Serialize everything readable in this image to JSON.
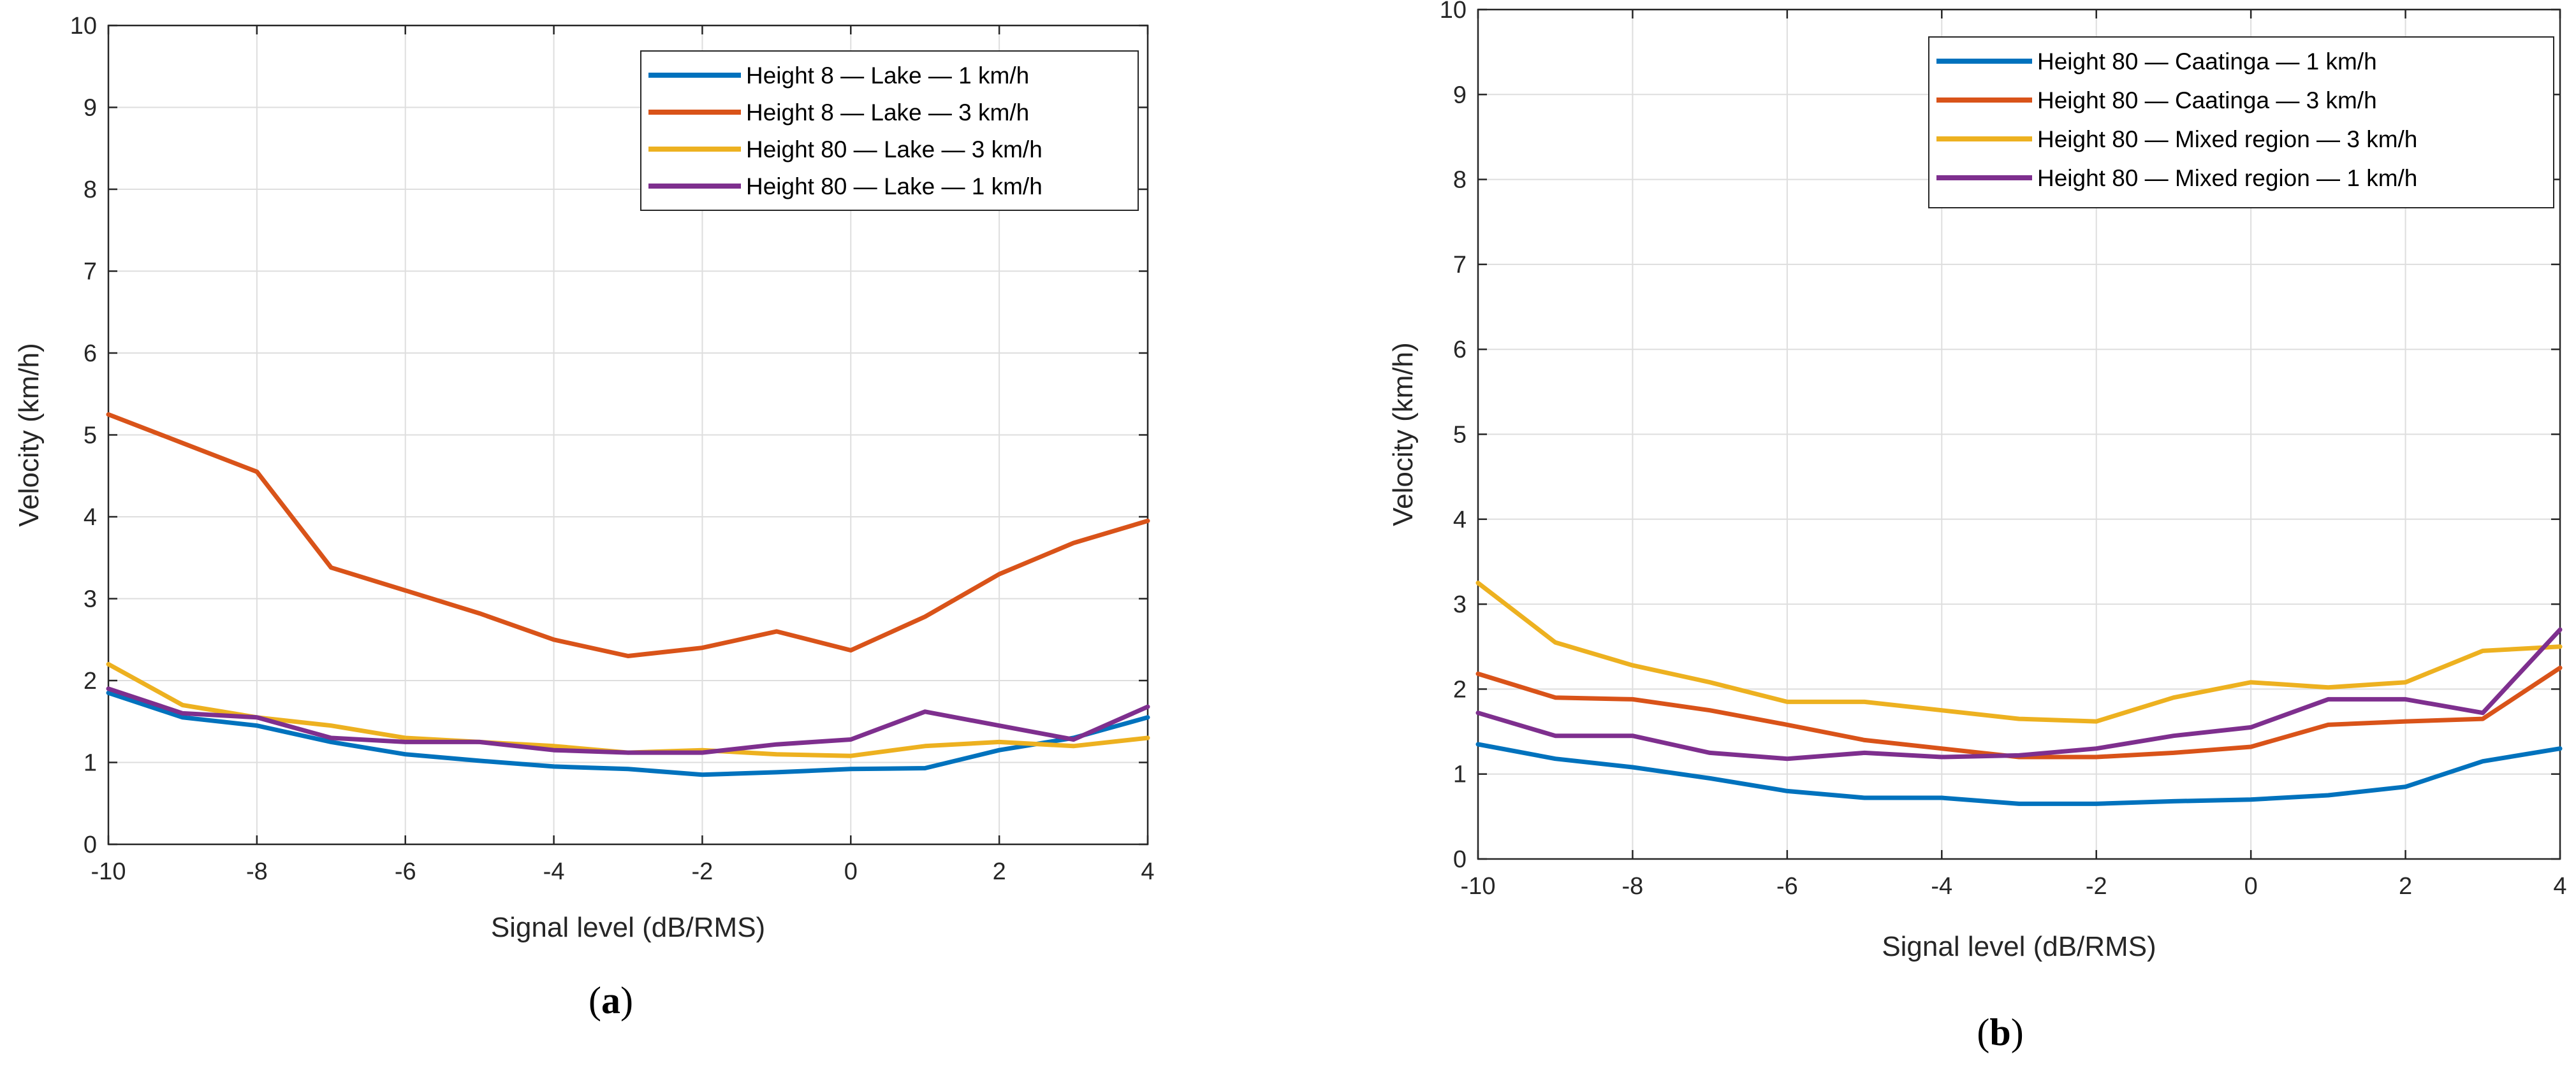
{
  "chart_data": [
    {
      "type": "line",
      "panel": "a",
      "xlabel": "Signal level (dB/RMS)",
      "ylabel": "Velocity (km/h)",
      "xlim": [
        -10,
        4
      ],
      "ylim": [
        0,
        10
      ],
      "xticks": [
        -10,
        -8,
        -6,
        -4,
        -2,
        0,
        2,
        4
      ],
      "yticks": [
        0,
        1,
        2,
        3,
        4,
        5,
        6,
        7,
        8,
        9,
        10
      ],
      "grid": true,
      "legend_position": "top-right",
      "x": [
        -10,
        -9,
        -8,
        -7,
        -6,
        -5,
        -4,
        -3,
        -2,
        -1,
        0,
        1,
        2,
        3,
        4
      ],
      "series": [
        {
          "name": "Height 8 — Lake — 1 km/h",
          "color": "#0072BD",
          "values": [
            1.85,
            1.55,
            1.45,
            1.25,
            1.1,
            1.02,
            0.95,
            0.92,
            0.85,
            0.88,
            0.92,
            0.93,
            1.15,
            1.3,
            1.55
          ]
        },
        {
          "name": "Height 8 — Lake — 3 km/h",
          "color": "#D95319",
          "values": [
            5.25,
            4.9,
            4.55,
            3.38,
            3.1,
            2.82,
            2.5,
            2.3,
            2.4,
            2.6,
            2.37,
            2.78,
            3.3,
            3.68,
            3.95
          ]
        },
        {
          "name": "Height 80 — Lake — 3 km/h",
          "color": "#EDB120",
          "values": [
            2.2,
            1.7,
            1.55,
            1.45,
            1.3,
            1.25,
            1.2,
            1.12,
            1.15,
            1.1,
            1.08,
            1.2,
            1.25,
            1.2,
            1.3
          ]
        },
        {
          "name": "Height 80 — Lake — 1 km/h",
          "color": "#7E2F8E",
          "values": [
            1.9,
            1.6,
            1.55,
            1.3,
            1.25,
            1.25,
            1.15,
            1.12,
            1.12,
            1.22,
            1.28,
            1.62,
            1.45,
            1.28,
            1.68
          ]
        }
      ]
    },
    {
      "type": "line",
      "panel": "b",
      "xlabel": "Signal level (dB/RMS)",
      "ylabel": "Velocity (km/h)",
      "xlim": [
        -10,
        4
      ],
      "ylim": [
        0,
        10
      ],
      "xticks": [
        -10,
        -8,
        -6,
        -4,
        -2,
        0,
        2,
        4
      ],
      "yticks": [
        0,
        1,
        2,
        3,
        4,
        5,
        6,
        7,
        8,
        9,
        10
      ],
      "grid": true,
      "legend_position": "top-right",
      "x": [
        -10,
        -9,
        -8,
        -7,
        -6,
        -5,
        -4,
        -3,
        -2,
        -1,
        0,
        1,
        2,
        3,
        4
      ],
      "series": [
        {
          "name": "Height 80 — Caatinga — 1 km/h",
          "color": "#0072BD",
          "values": [
            1.35,
            1.18,
            1.08,
            0.95,
            0.8,
            0.72,
            0.72,
            0.65,
            0.65,
            0.68,
            0.7,
            0.75,
            0.85,
            1.15,
            1.3
          ]
        },
        {
          "name": "Height 80 — Caatinga — 3 km/h",
          "color": "#D95319",
          "values": [
            2.18,
            1.9,
            1.88,
            1.75,
            1.58,
            1.4,
            1.3,
            1.2,
            1.2,
            1.25,
            1.32,
            1.58,
            1.62,
            1.65,
            2.25
          ]
        },
        {
          "name": "Height 80 — Mixed region — 3 km/h",
          "color": "#EDB120",
          "values": [
            3.25,
            2.55,
            2.28,
            2.08,
            1.85,
            1.85,
            1.75,
            1.65,
            1.62,
            1.9,
            2.08,
            2.02,
            2.08,
            2.45,
            2.5
          ]
        },
        {
          "name": "Height 80 — Mixed region — 1 km/h",
          "color": "#7E2F8E",
          "values": [
            1.72,
            1.45,
            1.45,
            1.25,
            1.18,
            1.25,
            1.2,
            1.22,
            1.3,
            1.45,
            1.55,
            1.88,
            1.88,
            1.72,
            2.7
          ]
        }
      ]
    }
  ],
  "panels": [
    {
      "label_open": "(",
      "label_letter": "a",
      "label_close": ")"
    },
    {
      "label_open": "(",
      "label_letter": "b",
      "label_close": ")"
    }
  ]
}
